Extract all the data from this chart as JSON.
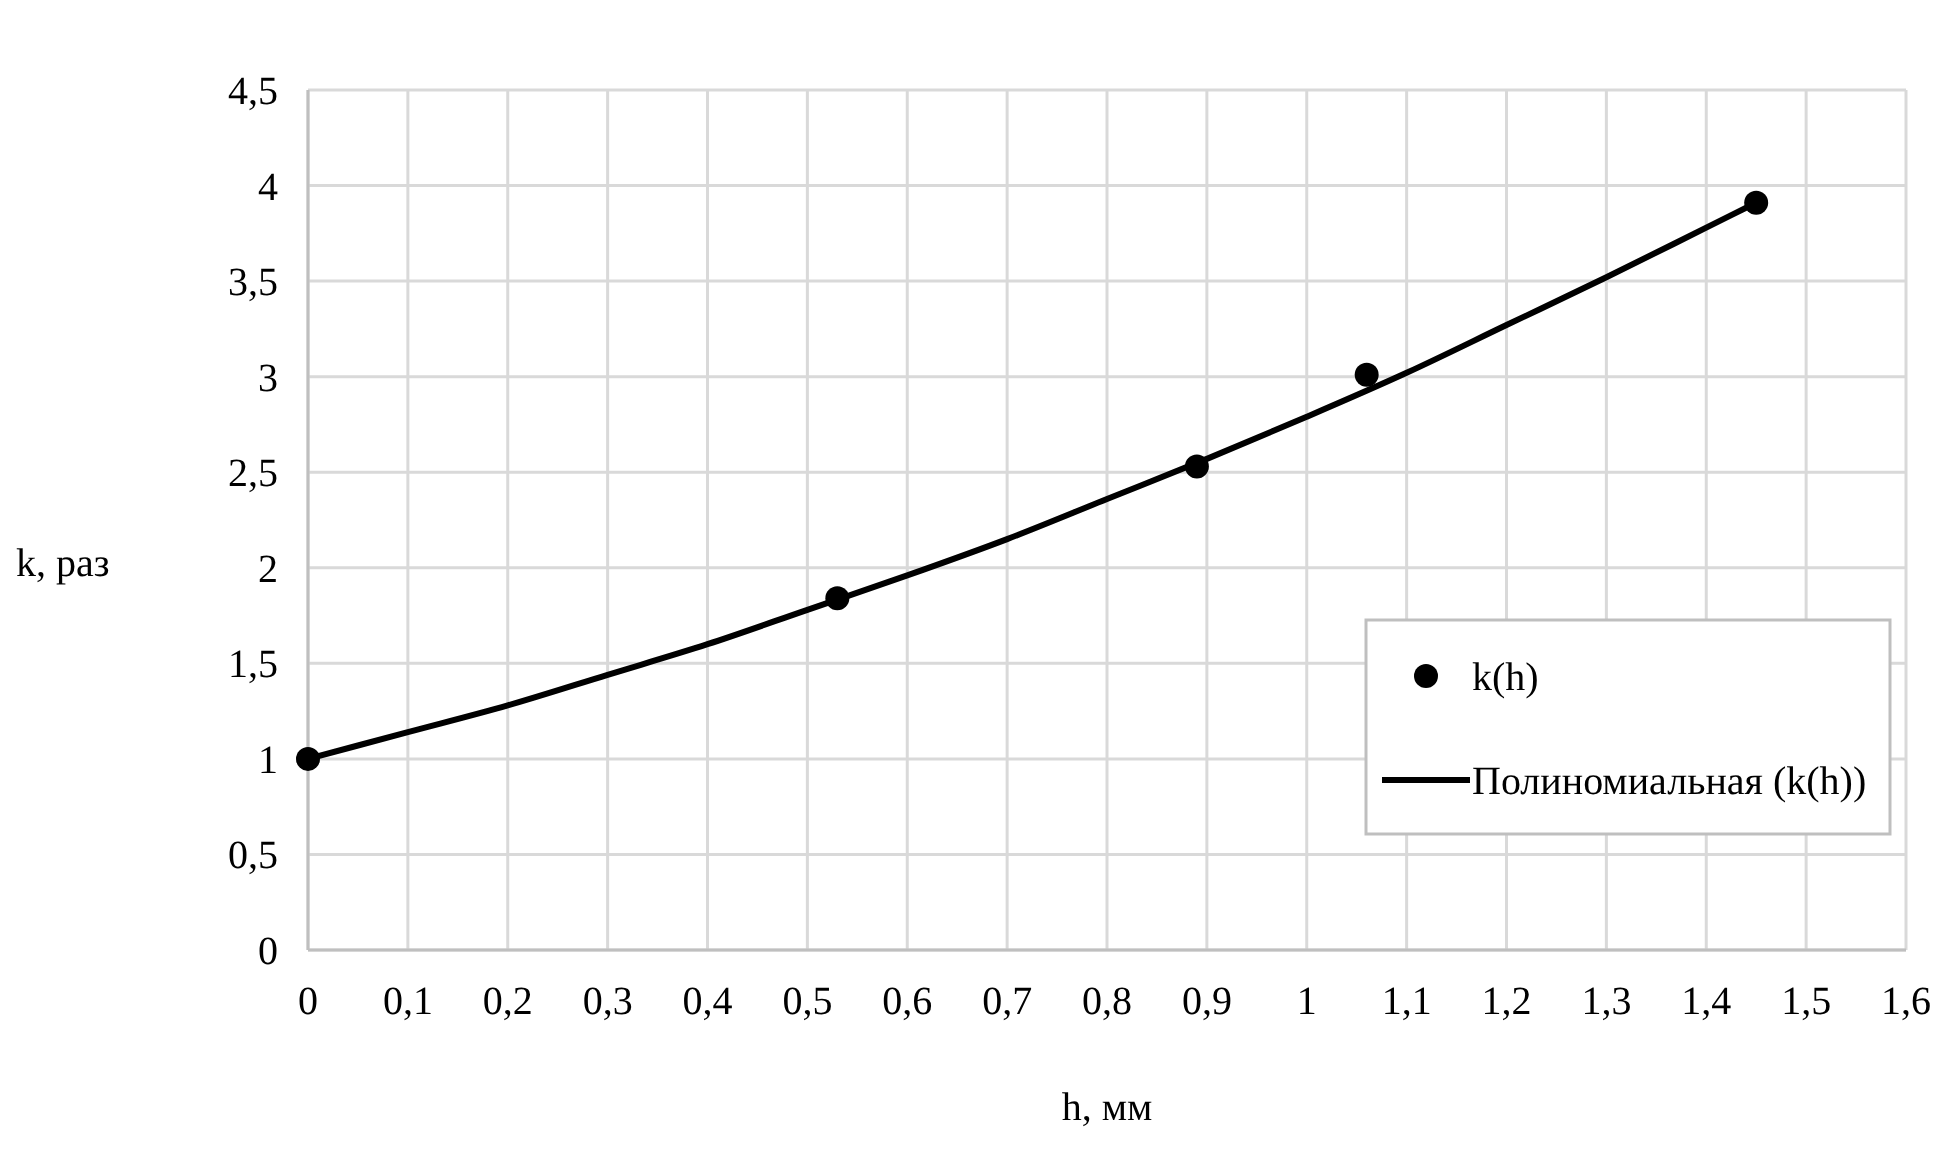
{
  "chart_data": {
    "type": "scatter",
    "xlabel": "h, мм",
    "ylabel": "k, раз",
    "xlim": [
      0,
      1.6
    ],
    "xticks": [
      0,
      {
        "value": 0.1,
        "label": "0,1"
      },
      {
        "value": 0.2,
        "label": "0,2"
      },
      {
        "value": 0.3,
        "label": "0,3"
      },
      {
        "value": 0.4,
        "label": "0,4"
      },
      {
        "value": 0.5,
        "label": "0,5"
      },
      {
        "value": 0.6,
        "label": "0,6"
      },
      {
        "value": 0.7,
        "label": "0,7"
      },
      {
        "value": 0.8,
        "label": "0,8"
      },
      {
        "value": 0.9,
        "label": "0,9"
      },
      1,
      {
        "value": 1.1,
        "label": "1,1"
      },
      {
        "value": 1.2,
        "label": "1,2"
      },
      {
        "value": 1.3,
        "label": "1,3"
      },
      {
        "value": 1.4,
        "label": "1,4"
      },
      {
        "value": 1.5,
        "label": "1,5"
      },
      {
        "value": 1.6,
        "label": "1,6"
      }
    ],
    "ylim": [
      0,
      4.5
    ],
    "yticks": [
      0,
      {
        "value": 0.5,
        "label": "0,5"
      },
      1,
      {
        "value": 1.5,
        "label": "1,5"
      },
      2,
      {
        "value": 2.5,
        "label": "2,5"
      },
      3,
      {
        "value": 3.5,
        "label": "3,5"
      },
      4,
      {
        "value": 4.5,
        "label": "4,5"
      }
    ],
    "grid": true,
    "legend": "bottom right",
    "series": [
      {
        "name": "k(h)",
        "marker": "circle",
        "color": "#000000",
        "x": [
          0,
          0.53,
          0.89,
          1.06,
          1.45
        ],
        "values": [
          1,
          1.84,
          2.53,
          3.01,
          3.91
        ]
      },
      {
        "name": "Полиномиальная (k(h))",
        "type": "line",
        "marker": "none",
        "line_style": "solid",
        "color": "#000000",
        "x": [
          0,
          0.1,
          0.2,
          0.3,
          0.4,
          0.5,
          0.6,
          0.7,
          0.8,
          0.9,
          1,
          1.1,
          1.2,
          1.3,
          1.4,
          1.45
        ],
        "values": [
          1,
          1.14,
          1.28,
          1.44,
          1.6,
          1.78,
          1.96,
          2.15,
          2.36,
          2.57,
          2.79,
          3.02,
          3.27,
          3.52,
          3.78,
          3.91
        ]
      }
    ]
  }
}
